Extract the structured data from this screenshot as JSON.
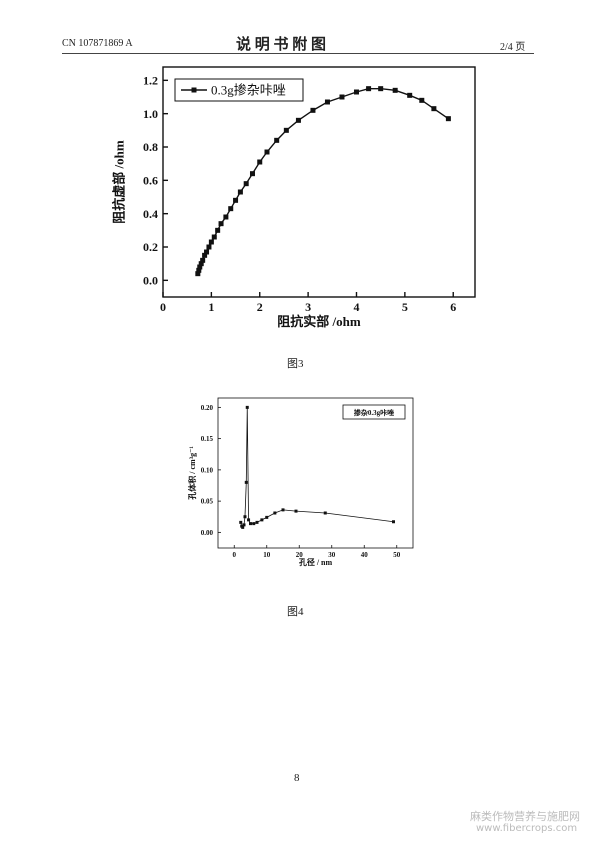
{
  "header": {
    "number": "CN 107871869 A",
    "title": "说 明 书 附 图",
    "page": "2/4 页"
  },
  "captions": [
    "图3",
    "图4"
  ],
  "footer": {
    "page": "8"
  },
  "watermark": {
    "name": "麻类作物营养与施肥网",
    "url": "www.fibercrops.com"
  },
  "chart_data": [
    {
      "type": "line",
      "x_label": "阻抗实部 /ohm",
      "y_label": "阻抗虚部 /ohm",
      "legend": "upper left",
      "x": [
        0.72,
        0.74,
        0.76,
        0.79,
        0.82,
        0.86,
        0.9,
        0.95,
        1.0,
        1.06,
        1.13,
        1.2,
        1.3,
        1.4,
        1.5,
        1.6,
        1.72,
        1.85,
        2.0,
        2.15,
        2.35,
        2.55,
        2.8,
        3.1,
        3.4,
        3.7,
        4.0,
        4.25,
        4.5,
        4.8,
        5.1,
        5.35,
        5.6,
        5.9
      ],
      "series": [
        {
          "name": "0.3g掺杂咔唑",
          "color": "#111111",
          "marker": "square",
          "values": [
            0.04,
            0.06,
            0.08,
            0.1,
            0.12,
            0.15,
            0.17,
            0.2,
            0.23,
            0.26,
            0.3,
            0.34,
            0.38,
            0.43,
            0.48,
            0.53,
            0.58,
            0.64,
            0.71,
            0.77,
            0.84,
            0.9,
            0.96,
            1.02,
            1.07,
            1.1,
            1.13,
            1.15,
            1.15,
            1.14,
            1.11,
            1.08,
            1.03,
            0.97
          ]
        }
      ],
      "xlim": [
        0,
        6.45
      ],
      "xticks": [
        0,
        1,
        2,
        3,
        4,
        5,
        6
      ],
      "ylim": [
        -0.1,
        1.28
      ],
      "yticks": [
        {
          "value": 0,
          "label": "0.0"
        },
        0.2,
        0.4,
        0.6,
        0.8,
        {
          "value": 1,
          "label": "1.0"
        },
        1.2
      ]
    },
    {
      "type": "line",
      "x_label": "孔径 / nm",
      "y_label": "孔体积 / cm³g⁻¹",
      "legend": "upper right",
      "x": [
        2.0,
        2.3,
        2.6,
        3.0,
        3.3,
        3.7,
        4.0,
        4.4,
        5.0,
        6,
        7,
        8.5,
        10,
        12.5,
        15,
        19,
        28,
        49
      ],
      "series": [
        {
          "name": "掺杂0.3g咔唑",
          "color": "#111111",
          "marker": "square",
          "values": [
            0.016,
            0.01,
            0.008,
            0.012,
            0.025,
            0.08,
            0.2,
            0.02,
            0.014,
            0.014,
            0.016,
            0.02,
            0.024,
            0.031,
            0.036,
            0.034,
            0.031,
            0.017
          ]
        }
      ],
      "xlim": [
        -5,
        55
      ],
      "xticks": [
        0,
        10,
        20,
        30,
        40,
        50
      ],
      "ylim": [
        -0.025,
        0.215
      ],
      "yticks": [
        {
          "value": 0,
          "label": "0.00"
        },
        {
          "value": 0.05,
          "label": "0.05"
        },
        {
          "value": 0.1,
          "label": "0.10"
        },
        {
          "value": 0.15,
          "label": "0.15"
        },
        {
          "value": 0.2,
          "label": "0.20"
        }
      ]
    }
  ]
}
